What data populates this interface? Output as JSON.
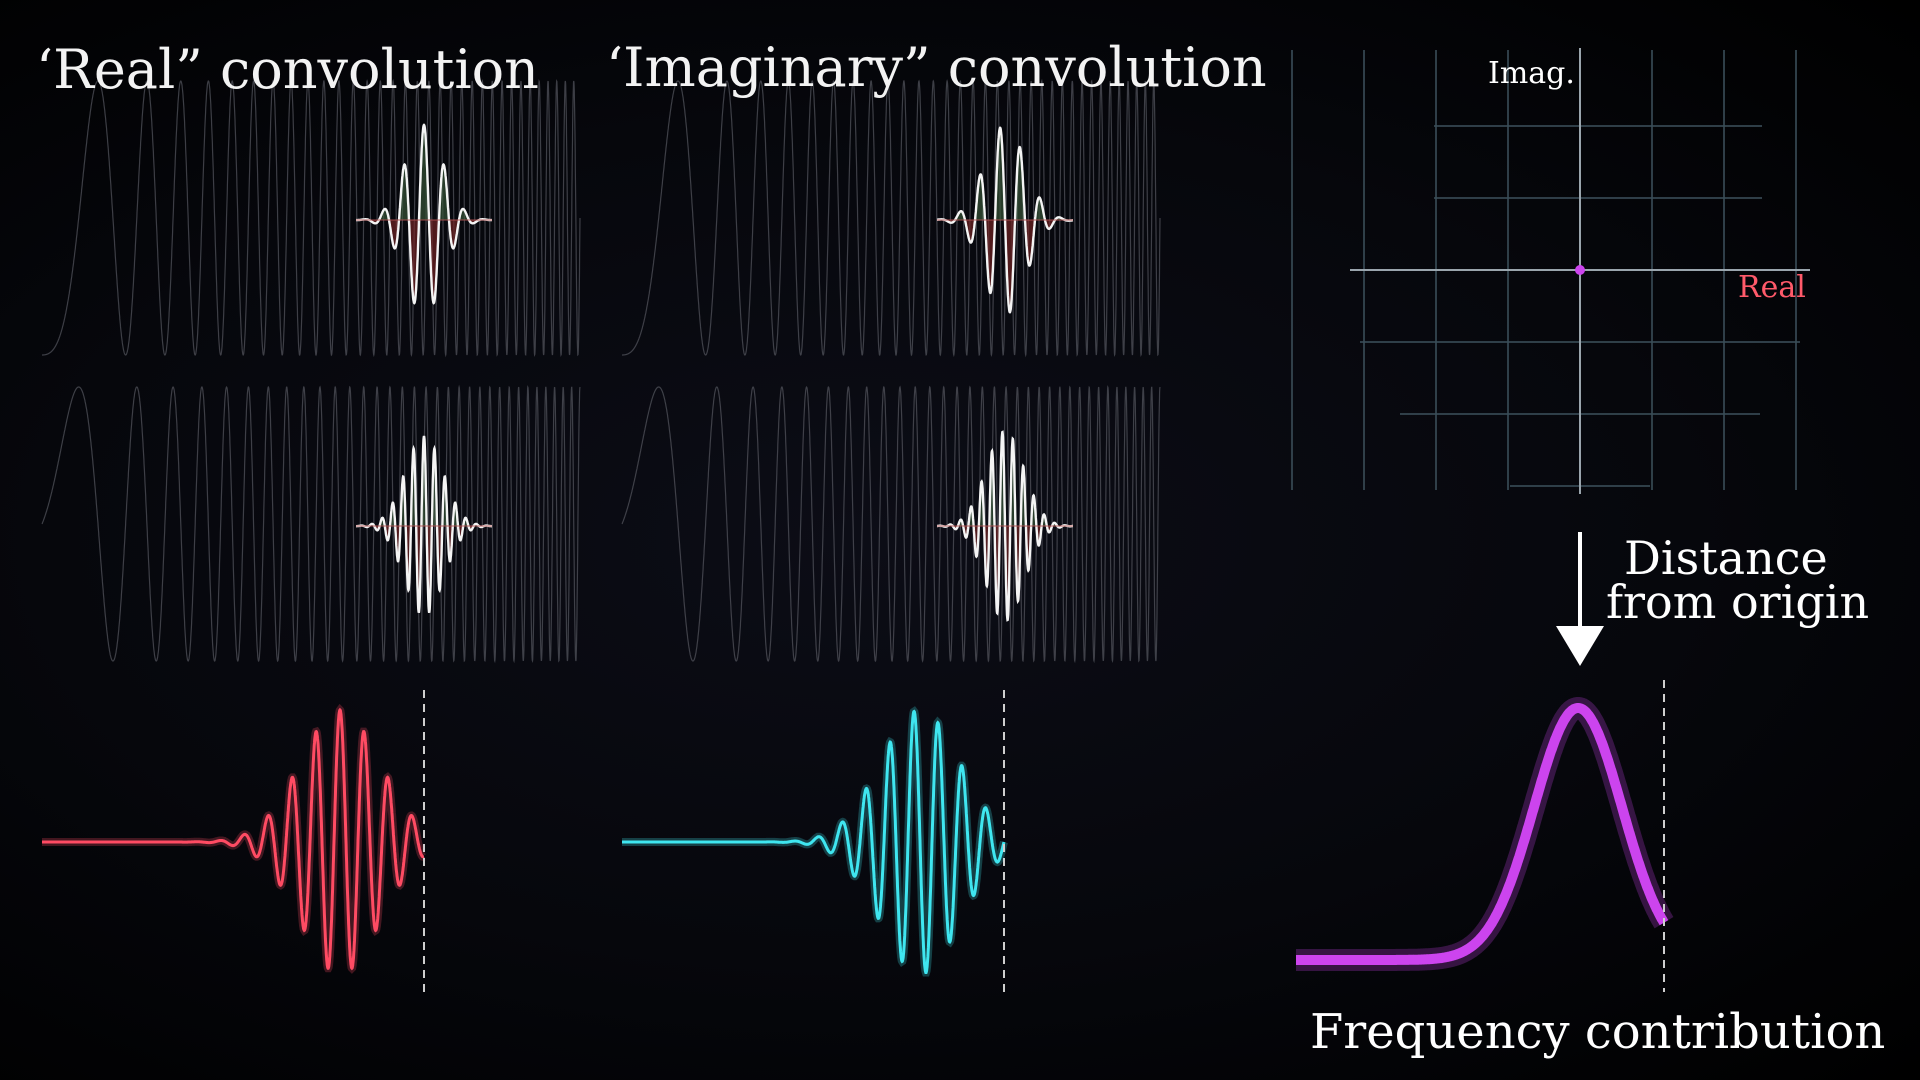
{
  "titles": {
    "real_convolution": "‘Real” convolution",
    "imaginary_convolution": "‘Imaginary” convolution"
  },
  "complex_plane": {
    "imag_axis_label": "Imag.",
    "real_axis_label": "Real"
  },
  "arrow_label": {
    "line1": "Distance",
    "line2": "from origin"
  },
  "frequency_label": "Frequency contribution",
  "colors": {
    "real": "#ff4b63",
    "imaginary": "#3fe6f0",
    "magnitude": "#cc44ee",
    "chirp": "#55575f",
    "product_positive": "#3c5a3c",
    "product_negative": "#7a2828",
    "grid": "#3a4d58",
    "real_label": "#ff5a6a"
  },
  "icons": {
    "down_arrow": "arrow-down-icon",
    "origin_dot": "origin-dot-icon"
  }
}
